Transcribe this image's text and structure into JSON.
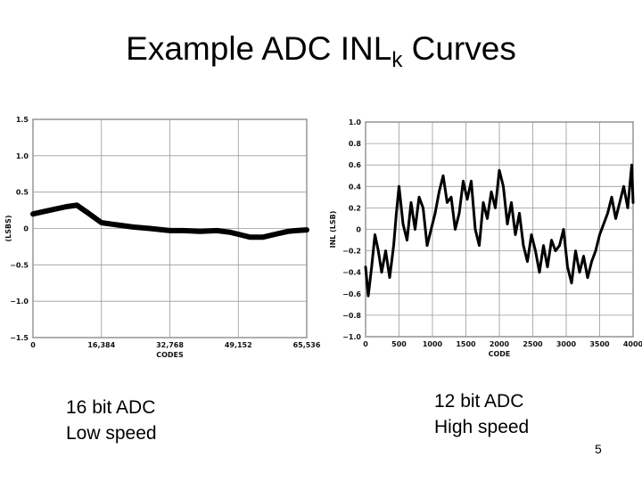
{
  "title": {
    "main": "Example ADC INL",
    "subscript": "k",
    "suffix": " Curves"
  },
  "captions": {
    "left": {
      "line1": "16 bit ADC",
      "line2": "Low speed"
    },
    "right": {
      "line1": "12 bit ADC",
      "line2": "High speed"
    }
  },
  "page_number": "5",
  "chart_data": [
    {
      "type": "line",
      "title": "",
      "xlabel": "CODES",
      "ylabel": "(LSBS)",
      "xlim": [
        0,
        65536
      ],
      "ylim": [
        -1.5,
        1.5
      ],
      "x_ticks": [
        0,
        16384,
        32768,
        49152,
        65536
      ],
      "x_tick_labels": [
        "0",
        "16,384",
        "32,768",
        "49,152",
        "65,536"
      ],
      "y_ticks": [
        1.5,
        1.0,
        0.5,
        0,
        -0.5,
        -1.0,
        -1.5
      ],
      "y_tick_labels": [
        "1.5",
        "1.0",
        "0.5",
        "0",
        "−0.5",
        "−1.0",
        "−1.5"
      ],
      "grid": true,
      "series": [
        {
          "color": "#000000",
          "x": [
            0,
            4000,
            8000,
            10500,
            13000,
            16384,
            20000,
            24000,
            28000,
            32768,
            36000,
            40000,
            44000,
            47000,
            49152,
            52000,
            55000,
            58000,
            61000,
            63000,
            65536
          ],
          "y": [
            0.2,
            0.25,
            0.3,
            0.32,
            0.22,
            0.08,
            0.05,
            0.02,
            0.0,
            -0.03,
            -0.03,
            -0.04,
            -0.03,
            -0.05,
            -0.08,
            -0.12,
            -0.12,
            -0.08,
            -0.04,
            -0.03,
            -0.02
          ]
        }
      ]
    },
    {
      "type": "line",
      "title": "",
      "xlabel": "CODE",
      "ylabel": "INL (LSB)",
      "xlim": [
        0,
        4000
      ],
      "ylim": [
        -1.0,
        1.0
      ],
      "x_ticks": [
        0,
        500,
        1000,
        1500,
        2000,
        2500,
        3000,
        3500,
        4000
      ],
      "x_tick_labels": [
        "0",
        "500",
        "1000",
        "1500",
        "2000",
        "2500",
        "3000",
        "3500",
        "4000"
      ],
      "y_ticks": [
        1.0,
        0.8,
        0.6,
        0.4,
        0.2,
        0,
        -0.2,
        -0.4,
        -0.6,
        -0.8,
        -1.0
      ],
      "y_tick_labels": [
        "1.0",
        "0.8",
        "0.6",
        "0.4",
        "0.2",
        "0",
        "−0.2",
        "−0.4",
        "−0.6",
        "−0.8",
        "−1.0"
      ],
      "grid": true,
      "series": [
        {
          "color": "#000000",
          "x": [
            0,
            40,
            90,
            140,
            190,
            240,
            300,
            360,
            420,
            460,
            500,
            560,
            620,
            680,
            740,
            800,
            860,
            920,
            980,
            1040,
            1100,
            1160,
            1220,
            1280,
            1340,
            1400,
            1460,
            1520,
            1580,
            1640,
            1700,
            1760,
            1820,
            1880,
            1940,
            2000,
            2060,
            2120,
            2180,
            2240,
            2300,
            2360,
            2420,
            2480,
            2540,
            2600,
            2660,
            2720,
            2780,
            2840,
            2900,
            2960,
            3020,
            3080,
            3140,
            3200,
            3260,
            3320,
            3380,
            3440,
            3500,
            3560,
            3620,
            3680,
            3740,
            3800,
            3860,
            3920,
            3980,
            4000
          ],
          "y": [
            -0.35,
            -0.62,
            -0.35,
            -0.05,
            -0.2,
            -0.4,
            -0.2,
            -0.45,
            -0.15,
            0.15,
            0.4,
            0.05,
            -0.1,
            0.25,
            0.0,
            0.3,
            0.2,
            -0.15,
            0.0,
            0.15,
            0.35,
            0.5,
            0.25,
            0.3,
            0.0,
            0.15,
            0.45,
            0.28,
            0.45,
            0.0,
            -0.15,
            0.25,
            0.1,
            0.35,
            0.2,
            0.55,
            0.4,
            0.05,
            0.25,
            -0.05,
            0.15,
            -0.15,
            -0.3,
            -0.05,
            -0.2,
            -0.4,
            -0.15,
            -0.35,
            -0.1,
            -0.2,
            -0.15,
            0.0,
            -0.35,
            -0.5,
            -0.2,
            -0.4,
            -0.25,
            -0.45,
            -0.3,
            -0.2,
            -0.05,
            0.05,
            0.15,
            0.3,
            0.1,
            0.25,
            0.4,
            0.2,
            0.6,
            0.25
          ]
        }
      ]
    }
  ]
}
